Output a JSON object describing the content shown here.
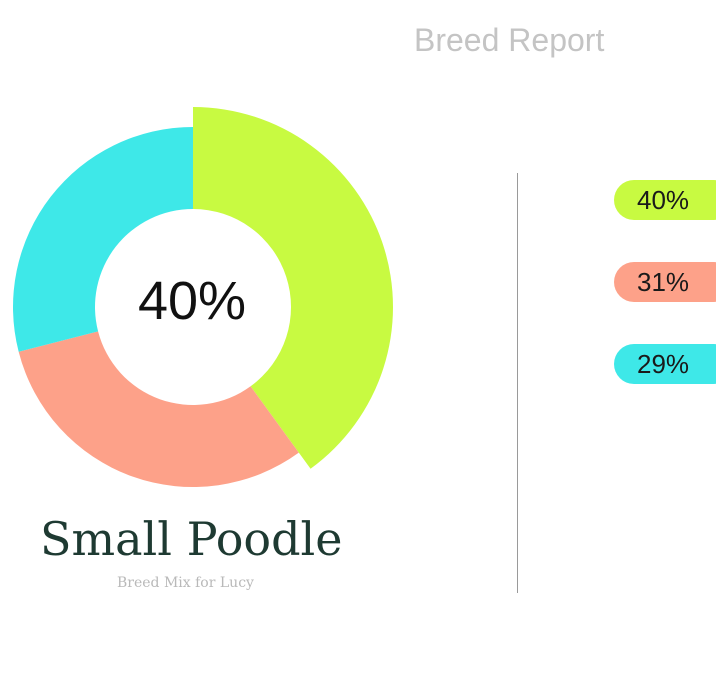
{
  "header": {
    "title": "Breed Report"
  },
  "center_label": "40%",
  "breed": {
    "name": "Small Poodle",
    "subtitle": "Breed Mix for Lucy"
  },
  "chart_data": {
    "type": "pie",
    "variant": "donut",
    "slices": [
      {
        "value": 40,
        "label": "40%",
        "color": "#c8fa41"
      },
      {
        "value": 31,
        "label": "31%",
        "color": "#fda189"
      },
      {
        "value": 29,
        "label": "29%",
        "color": "#3ee8e8"
      }
    ],
    "highlighted_slice": 0
  }
}
